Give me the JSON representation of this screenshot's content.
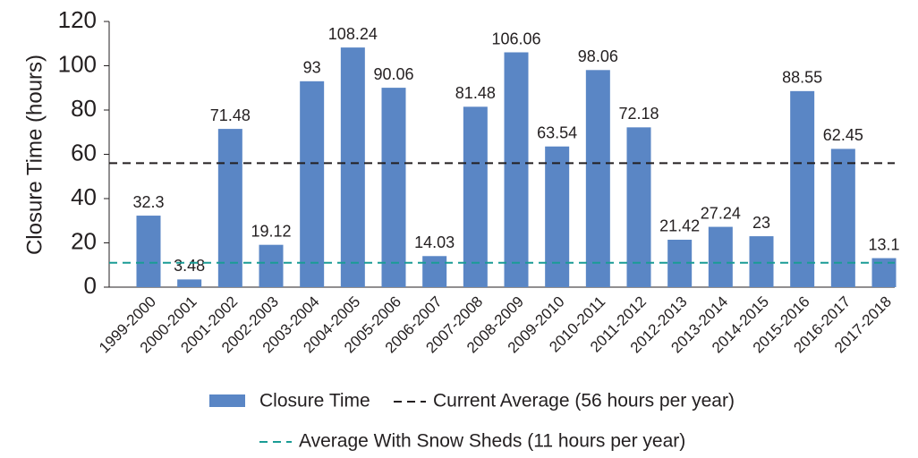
{
  "chart_data": {
    "type": "bar",
    "y_label": "Closure Time (hours)",
    "categories": [
      "1999-2000",
      "2000-2001",
      "2001-2002",
      "2002-2003",
      "2003-2004",
      "2004-2005",
      "2005-2006",
      "2006-2007",
      "2007-2008",
      "2008-2009",
      "2009-2010",
      "2010-2011",
      "2011-2012",
      "2012-2013",
      "2013-2014",
      "2014-2015",
      "2015-2016",
      "2016-2017",
      "2017-2018"
    ],
    "series": [
      {
        "name": "Closure Time",
        "color": "#5a86c5",
        "values": [
          32.3,
          3.48,
          71.48,
          19.12,
          93,
          108.24,
          90.06,
          14.03,
          81.48,
          106.06,
          63.54,
          98.06,
          72.18,
          21.42,
          27.24,
          23,
          88.55,
          62.45,
          13.1
        ]
      }
    ],
    "reference_lines": [
      {
        "name": "Current Average (56 hours per year)",
        "value": 56,
        "color": "#231f20"
      },
      {
        "name": "Average With Snow Sheds (11 hours per year)",
        "value": 11,
        "color": "#1a9c95"
      }
    ],
    "ylim": [
      0,
      120
    ],
    "yticks": [
      0,
      20,
      40,
      60,
      80,
      100,
      120
    ],
    "legend": "bottom"
  }
}
